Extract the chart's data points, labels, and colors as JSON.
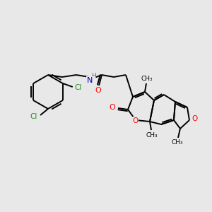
{
  "bg_color": "#e8e8e8",
  "atom_colors": {
    "O": "#ff0000",
    "N": "#0000cd",
    "Cl": "#228B22",
    "C": "#000000",
    "H": "#666666"
  },
  "bond_color": "#000000",
  "bond_width": 1.4,
  "figsize": [
    3.0,
    3.0
  ],
  "dpi": 100,
  "xlim": [
    0,
    300
  ],
  "ylim": [
    0,
    300
  ]
}
